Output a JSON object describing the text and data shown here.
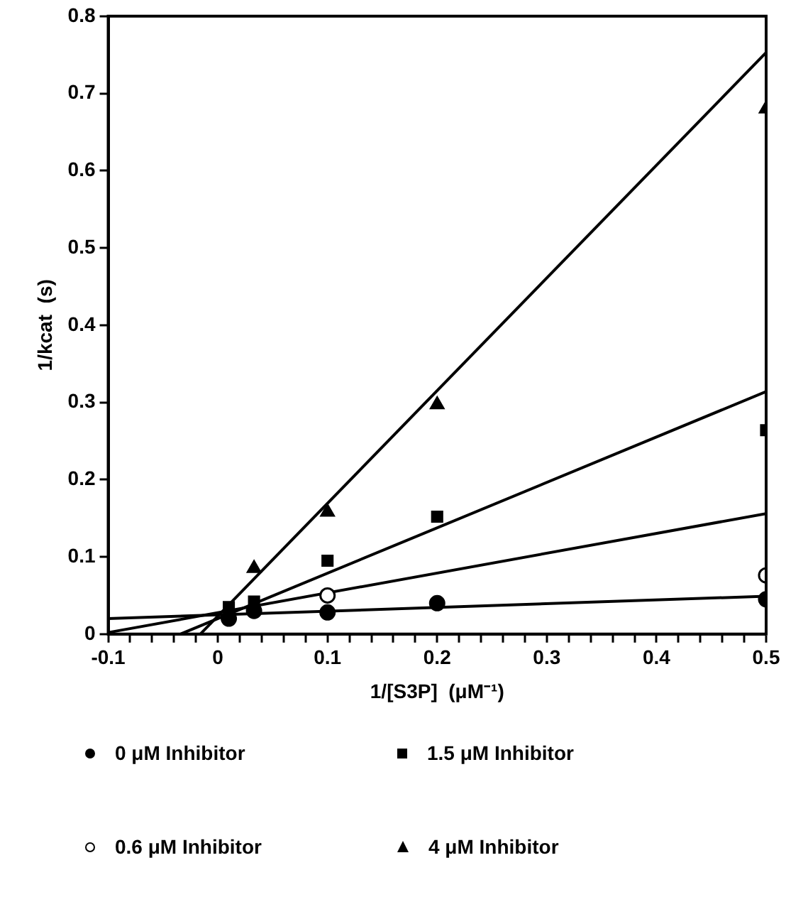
{
  "chart_data": {
    "type": "scatter",
    "xlabel": "1/[S3P]  (μM⁻¹)",
    "ylabel": "1/kcat  (s)",
    "xlim": [
      -0.1,
      0.5
    ],
    "ylim": [
      0,
      0.8
    ],
    "xticks": [
      -0.1,
      {
        "value": -0.08,
        "label": null
      },
      {
        "value": -0.06,
        "label": null
      },
      {
        "value": -0.04,
        "label": null
      },
      {
        "value": -0.02,
        "label": null
      },
      0,
      {
        "value": 0.02,
        "label": null
      },
      {
        "value": 0.04,
        "label": null
      },
      {
        "value": 0.06,
        "label": null
      },
      {
        "value": 0.08,
        "label": null
      },
      0.1,
      {
        "value": 0.12,
        "label": null
      },
      {
        "value": 0.14,
        "label": null
      },
      {
        "value": 0.16,
        "label": null
      },
      {
        "value": 0.18,
        "label": null
      },
      0.2,
      {
        "value": 0.22,
        "label": null
      },
      {
        "value": 0.24,
        "label": null
      },
      {
        "value": 0.26,
        "label": null
      },
      {
        "value": 0.28,
        "label": null
      },
      0.3,
      {
        "value": 0.32,
        "label": null
      },
      {
        "value": 0.34,
        "label": null
      },
      {
        "value": 0.36,
        "label": null
      },
      {
        "value": 0.38,
        "label": null
      },
      0.4,
      {
        "value": 0.42,
        "label": null
      },
      {
        "value": 0.44,
        "label": null
      },
      {
        "value": 0.46,
        "label": null
      },
      {
        "value": 0.48,
        "label": null
      },
      0.5
    ],
    "yticks": [
      0,
      0.1,
      0.2,
      0.3,
      0.4,
      0.5,
      0.6,
      0.7,
      0.8
    ],
    "grid": false,
    "legend": "bottom",
    "series": [
      {
        "name": "0 μM Inhibitor",
        "color": "#000000",
        "marker": "circle",
        "x": [
          0.01,
          0.033,
          0.1,
          0.2,
          0.5
        ],
        "values": [
          0.02,
          0.03,
          0.028,
          0.04,
          0.045
        ]
      },
      {
        "name": "1.5 μM Inhibitor",
        "color": "#000000",
        "marker": "square",
        "x": [
          0.01,
          0.033,
          0.1,
          0.2,
          0.5
        ],
        "values": [
          0.035,
          0.042,
          0.095,
          0.152,
          0.264
        ]
      },
      {
        "name": "0.6 μM Inhibitor",
        "color": "#ffffff",
        "marker": "circle",
        "x": [
          0.1,
          0.5
        ],
        "values": [
          0.05,
          0.076
        ]
      },
      {
        "name": "4 μM Inhibitor",
        "color": "#000000",
        "marker": "triangle",
        "x": [
          0.033,
          0.1,
          0.2,
          0.5
        ],
        "values": [
          0.085,
          0.158,
          0.297,
          0.68
        ]
      },
      {
        "type": "line",
        "color": "#000000",
        "marker": "none",
        "x": [
          -0.1,
          0.5
        ],
        "values": [
          0.02,
          0.049
        ]
      },
      {
        "type": "line",
        "color": "#000000",
        "marker": "none",
        "x": [
          -0.1,
          0.5
        ],
        "values": [
          0.002,
          0.156
        ]
      },
      {
        "type": "line",
        "color": "#000000",
        "marker": "none",
        "x": [
          -0.034,
          0.5
        ],
        "values": [
          0,
          0.314
        ]
      },
      {
        "type": "line",
        "color": "#000000",
        "marker": "none",
        "x": [
          -0.016,
          0.5
        ],
        "values": [
          0,
          0.753
        ]
      }
    ]
  }
}
